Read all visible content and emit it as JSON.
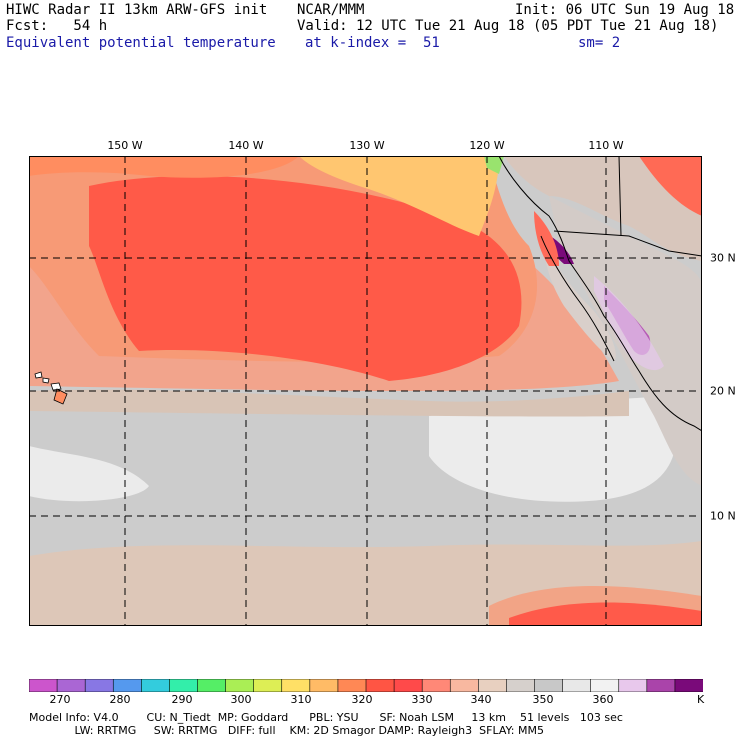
{
  "header": {
    "line1_left": "HIWC Radar II 13km ARW-GFS init",
    "line1_mid": "NCAR/MMM",
    "line1_right": "Init: 06 UTC Sun 19 Aug 18",
    "line2_left": "Fcst:   54 h",
    "line2_right": "Valid: 12 UTC Tue 21 Aug 18 (05 PDT Tue 21 Aug 18)",
    "field": "Equivalent potential temperature",
    "level": "at k-index =  51",
    "smooth": "sm= 2"
  },
  "map": {
    "lon_labels": [
      "150 W",
      "140 W",
      "130 W",
      "120 W",
      "110 W"
    ],
    "lat_labels": [
      "30 N",
      "20 N",
      "10 N"
    ],
    "region": "Eastern North Pacific, Hawaii to Baja California / Mexico"
  },
  "colorbar": {
    "unit": "K",
    "labels": [
      "270",
      "280",
      "290",
      "300",
      "310",
      "320",
      "330",
      "340",
      "350",
      "360"
    ],
    "colors": [
      "#cc55cc",
      "#aa66d4",
      "#8877e4",
      "#5599ee",
      "#33ccdd",
      "#33eeaa",
      "#55ee66",
      "#aaee55",
      "#ddee55",
      "#ffe066",
      "#ffbb66",
      "#ff8855",
      "#ff5544",
      "#ff4a4a",
      "#ff8877",
      "#f8b8a0",
      "#e8d0c0",
      "#d6d0cc",
      "#c8c8c8",
      "#e8e8e8",
      "#f2f2f2",
      "#e8c8ec",
      "#aa44aa",
      "#7a0a7a"
    ]
  },
  "footer": {
    "line1": "Model Info: V4.0        CU: N_Tiedt  MP: Goddard      PBL: YSU      SF: Noah LSM     13 km    51 levels   103 sec",
    "line2": "             LW: RRTMG     SW: RRTMG   DIFF: full    KM: 2D Smagor DAMP: Rayleigh3  SFLAY: MM5"
  }
}
